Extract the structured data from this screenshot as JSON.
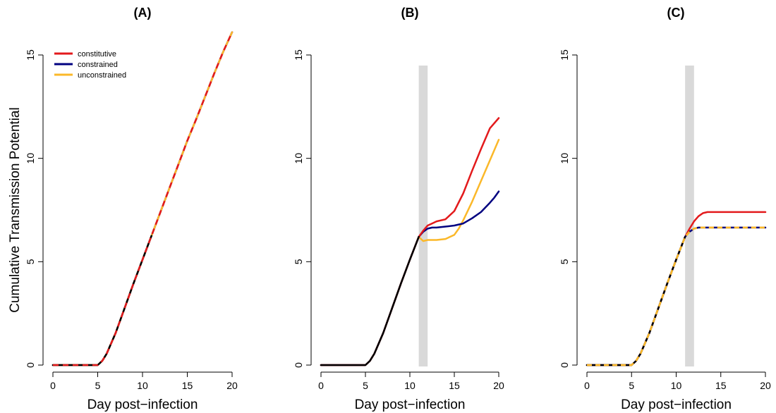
{
  "colors": {
    "constitutive": "#e31a1c",
    "constrained": "#000080",
    "unconstrained": "#fbb829",
    "baseline": "#000000",
    "shade": "#d9d9d9"
  },
  "ylabel": "Cumulative Transmission Potential",
  "legend": [
    {
      "key": "constitutive",
      "label": "constitutive"
    },
    {
      "key": "constrained",
      "label": "constrained"
    },
    {
      "key": "unconstrained",
      "label": "unconstrained"
    }
  ],
  "chart_data": [
    {
      "type": "line",
      "title": "(A)",
      "xlabel": "Day post−infection",
      "xlim": [
        0,
        20
      ],
      "ylim": [
        0,
        15
      ],
      "xticks": [
        0,
        5,
        10,
        15,
        20
      ],
      "yticks": [
        0,
        5,
        10,
        15
      ],
      "shaded_interval": null,
      "legend_position": "top-left",
      "series": [
        {
          "name": "constitutive",
          "color_key": "constitutive",
          "dashed": false,
          "x": [
            0,
            5,
            5.5,
            6,
            7,
            8,
            9,
            10,
            11,
            12,
            13,
            14,
            15,
            16,
            17,
            18,
            19,
            20
          ],
          "y": [
            0,
            0,
            0.2,
            0.55,
            1.55,
            2.75,
            3.95,
            5.1,
            6.25,
            7.4,
            8.55,
            9.7,
            10.85,
            11.9,
            13.0,
            14.1,
            15.15,
            16.1
          ]
        },
        {
          "name": "constrained",
          "color_key": "constrained",
          "dashed": false,
          "x": [
            0,
            5,
            5.5,
            6,
            7,
            8,
            9,
            10,
            11,
            12,
            13,
            14,
            15,
            16,
            17,
            18,
            19,
            20
          ],
          "y": [
            0,
            0,
            0.2,
            0.55,
            1.55,
            2.75,
            3.95,
            5.1,
            6.25,
            7.4,
            8.55,
            9.7,
            10.85,
            11.9,
            13.0,
            14.1,
            15.15,
            16.1
          ]
        },
        {
          "name": "unconstrained",
          "color_key": "unconstrained",
          "dashed": false,
          "x": [
            0,
            5,
            5.5,
            6,
            7,
            8,
            9,
            10,
            11,
            12,
            13,
            14,
            15,
            16,
            17,
            18,
            19,
            20
          ],
          "y": [
            0,
            0,
            0.2,
            0.55,
            1.55,
            2.75,
            3.95,
            5.1,
            6.25,
            7.4,
            8.55,
            9.7,
            10.85,
            11.9,
            13.0,
            14.1,
            15.15,
            16.1
          ]
        },
        {
          "name": "",
          "color_key": "baseline",
          "dashed": false,
          "x": [
            0,
            5,
            5.5,
            6,
            7,
            8,
            9,
            10,
            11
          ],
          "y": [
            0,
            0,
            0.2,
            0.55,
            1.55,
            2.75,
            3.95,
            5.1,
            6.25
          ]
        }
      ],
      "overlay_dashed": true
    },
    {
      "type": "line",
      "title": "(B)",
      "xlabel": "Day post−infection",
      "xlim": [
        0,
        20
      ],
      "ylim": [
        0,
        15
      ],
      "xticks": [
        0,
        5,
        10,
        15,
        20
      ],
      "yticks": [
        0,
        5,
        10,
        15
      ],
      "shaded_interval": [
        11,
        12
      ],
      "series": [
        {
          "name": "unconstrained",
          "color_key": "unconstrained",
          "dashed": false,
          "x": [
            0,
            5,
            5.5,
            6,
            7,
            8,
            9,
            10,
            11,
            11.5,
            12,
            13,
            14,
            15,
            15.5,
            16,
            17,
            18,
            19,
            20
          ],
          "y": [
            0,
            0,
            0.2,
            0.55,
            1.55,
            2.75,
            3.95,
            5.1,
            6.2,
            6.0,
            6.05,
            6.05,
            6.1,
            6.3,
            6.6,
            7.0,
            7.9,
            8.9,
            9.9,
            10.9
          ]
        },
        {
          "name": "constrained",
          "color_key": "constrained",
          "dashed": false,
          "x": [
            0,
            5,
            5.5,
            6,
            7,
            8,
            9,
            10,
            11,
            11.5,
            12,
            12.5,
            13,
            14,
            15,
            16,
            17,
            18,
            19,
            19.5,
            20
          ],
          "y": [
            0,
            0,
            0.2,
            0.55,
            1.55,
            2.75,
            3.95,
            5.1,
            6.2,
            6.45,
            6.6,
            6.65,
            6.65,
            6.7,
            6.75,
            6.85,
            7.1,
            7.4,
            7.85,
            8.1,
            8.4
          ]
        },
        {
          "name": "constitutive",
          "color_key": "constitutive",
          "dashed": false,
          "x": [
            0,
            5,
            5.5,
            6,
            7,
            8,
            9,
            10,
            11,
            11.5,
            12,
            12.5,
            13,
            14,
            15,
            16,
            17,
            18,
            19,
            20
          ],
          "y": [
            0,
            0,
            0.2,
            0.55,
            1.55,
            2.75,
            3.95,
            5.1,
            6.2,
            6.5,
            6.75,
            6.85,
            6.95,
            7.05,
            7.45,
            8.3,
            9.4,
            10.45,
            11.45,
            11.95
          ]
        },
        {
          "name": "",
          "color_key": "baseline",
          "dashed": false,
          "x": [
            0,
            5,
            5.5,
            6,
            7,
            8,
            9,
            10,
            11
          ],
          "y": [
            0,
            0,
            0.2,
            0.55,
            1.55,
            2.75,
            3.95,
            5.1,
            6.2
          ]
        }
      ],
      "overlay_dashed": false
    },
    {
      "type": "line",
      "title": "(C)",
      "xlabel": "Day post−infection",
      "xlim": [
        0,
        20
      ],
      "ylim": [
        0,
        15
      ],
      "xticks": [
        0,
        5,
        10,
        15,
        20
      ],
      "yticks": [
        0,
        5,
        10,
        15
      ],
      "shaded_interval": [
        11,
        12
      ],
      "series": [
        {
          "name": "constitutive",
          "color_key": "constitutive",
          "dashed": false,
          "x": [
            0,
            5,
            5.5,
            6,
            7,
            8,
            9,
            10,
            11,
            11.5,
            12,
            12.5,
            13,
            13.5,
            14,
            15,
            20
          ],
          "y": [
            0,
            0,
            0.2,
            0.55,
            1.55,
            2.75,
            3.95,
            5.1,
            6.2,
            6.6,
            6.95,
            7.2,
            7.35,
            7.4,
            7.4,
            7.4,
            7.4
          ]
        },
        {
          "name": "constrained",
          "color_key": "constrained",
          "dashed": false,
          "x": [
            0,
            5,
            5.5,
            6,
            7,
            8,
            9,
            10,
            11,
            11.5,
            12,
            12.5,
            13,
            13.5,
            14,
            15,
            20
          ],
          "y": [
            0,
            0,
            0.2,
            0.55,
            1.55,
            2.75,
            3.95,
            5.1,
            6.2,
            6.45,
            6.6,
            6.65,
            6.65,
            6.65,
            6.65,
            6.65,
            6.65
          ]
        },
        {
          "name": "unconstrained",
          "color_key": "unconstrained",
          "dashed": true,
          "x": [
            0,
            5,
            5.5,
            6,
            7,
            8,
            9,
            10,
            11,
            11.5,
            12,
            12.5,
            13,
            13.5,
            14,
            15,
            20
          ],
          "y": [
            0,
            0,
            0.2,
            0.55,
            1.55,
            2.75,
            3.95,
            5.1,
            6.2,
            6.45,
            6.6,
            6.65,
            6.65,
            6.65,
            6.65,
            6.65,
            6.65
          ]
        },
        {
          "name": "",
          "color_key": "baseline",
          "dashed": false,
          "x": [
            0,
            5,
            5.5,
            6,
            7,
            8,
            9,
            10,
            11
          ],
          "y": [
            0,
            0,
            0.2,
            0.55,
            1.55,
            2.75,
            3.95,
            5.1,
            6.2
          ]
        }
      ],
      "overlay_dashed": false
    }
  ]
}
